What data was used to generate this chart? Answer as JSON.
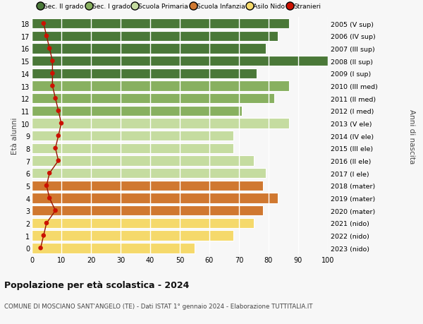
{
  "ages": [
    0,
    1,
    2,
    3,
    4,
    5,
    6,
    7,
    8,
    9,
    10,
    11,
    12,
    13,
    14,
    15,
    16,
    17,
    18
  ],
  "bar_values": [
    55,
    68,
    75,
    78,
    83,
    78,
    79,
    75,
    68,
    68,
    87,
    71,
    82,
    87,
    76,
    100,
    79,
    83,
    87
  ],
  "stranieri": [
    3,
    4,
    5,
    8,
    6,
    5,
    6,
    9,
    8,
    9,
    10,
    9,
    8,
    7,
    7,
    7,
    6,
    5,
    4
  ],
  "right_labels": [
    "2023 (nido)",
    "2022 (nido)",
    "2021 (nido)",
    "2020 (mater)",
    "2019 (mater)",
    "2018 (mater)",
    "2017 (I ele)",
    "2016 (II ele)",
    "2015 (III ele)",
    "2014 (IV ele)",
    "2013 (V ele)",
    "2012 (I med)",
    "2011 (II med)",
    "2010 (III med)",
    "2009 (I sup)",
    "2008 (II sup)",
    "2007 (III sup)",
    "2006 (IV sup)",
    "2005 (V sup)"
  ],
  "bar_colors": [
    "#f5d96b",
    "#f5d96b",
    "#f5d96b",
    "#d07830",
    "#d07830",
    "#d07830",
    "#c5dca0",
    "#c5dca0",
    "#c5dca0",
    "#c5dca0",
    "#c5dca0",
    "#88b060",
    "#88b060",
    "#88b060",
    "#4a7838",
    "#4a7838",
    "#4a7838",
    "#4a7838",
    "#4a7838"
  ],
  "legend_labels": [
    "Sec. II grado",
    "Sec. I grado",
    "Scuola Primaria",
    "Scuola Infanzia",
    "Asilo Nido",
    "Stranieri"
  ],
  "legend_colors": [
    "#4a7838",
    "#88b060",
    "#c5dca0",
    "#d07830",
    "#f5d96b",
    "#cc1100"
  ],
  "title": "Popolazione per età scolastica - 2024",
  "subtitle": "COMUNE DI MOSCIANO SANT'ANGELO (TE) - Dati ISTAT 1° gennaio 2024 - Elaborazione TUTTITALIA.IT",
  "ylabel": "Età alunni",
  "right_ylabel": "Anni di nascita",
  "xlim": [
    0,
    100
  ],
  "xticks": [
    0,
    10,
    20,
    30,
    40,
    50,
    60,
    70,
    80,
    90,
    100
  ],
  "background_color": "#f7f7f7",
  "plot_bg_color": "#f7f7f7",
  "grid_color": "#ffffff",
  "stranieri_line_color": "#991100",
  "stranieri_dot_color": "#cc1100",
  "bar_edge_color": "#ffffff"
}
